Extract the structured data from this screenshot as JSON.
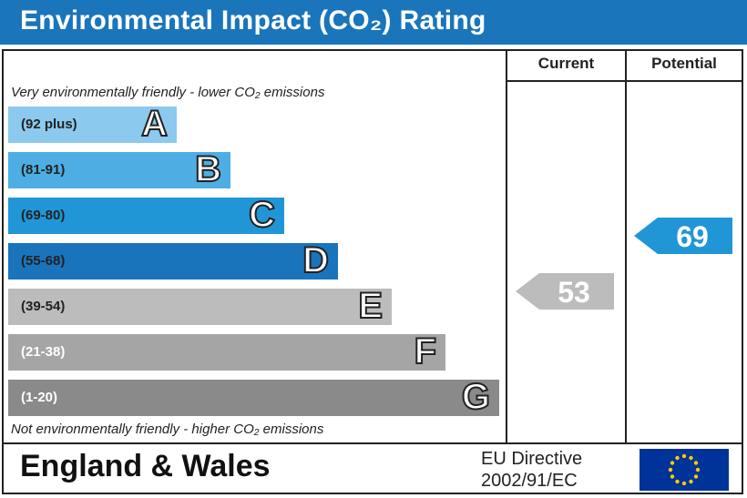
{
  "header": {
    "title": "Environmental Impact (CO₂) Rating"
  },
  "columns": {
    "current": "Current",
    "potential": "Potential"
  },
  "notes": {
    "top": "Very environmentally friendly - lower CO₂ emissions",
    "bottom": "Not environmentally friendly - higher CO₂ emissions"
  },
  "footer": {
    "country": "England & Wales",
    "directive_line1": "EU Directive",
    "directive_line2": "2002/91/EC"
  },
  "chart_data": {
    "type": "bar",
    "title": "Environmental Impact (CO₂) Rating",
    "bands": [
      {
        "letter": "A",
        "range": "(92 plus)",
        "color": "#8cc9ee",
        "text_color": "#222222"
      },
      {
        "letter": "B",
        "range": "(81-91)",
        "color": "#4eaee3",
        "text_color": "#222222"
      },
      {
        "letter": "C",
        "range": "(69-80)",
        "color": "#2196d6",
        "text_color": "#222222"
      },
      {
        "letter": "D",
        "range": "(55-68)",
        "color": "#1a74bc",
        "text_color": "#222222"
      },
      {
        "letter": "E",
        "range": "(39-54)",
        "color": "#bcbcbc",
        "text_color": "#222222"
      },
      {
        "letter": "F",
        "range": "(21-38)",
        "color": "#a5a5a5",
        "text_color": "#ffffff"
      },
      {
        "letter": "G",
        "range": "(1-20)",
        "color": "#8a8a8a",
        "text_color": "#ffffff"
      }
    ],
    "current": {
      "value": 53,
      "band": "E",
      "color": "#bcbcbc"
    },
    "potential": {
      "value": 69,
      "band": "C",
      "color": "#2196d6"
    }
  }
}
